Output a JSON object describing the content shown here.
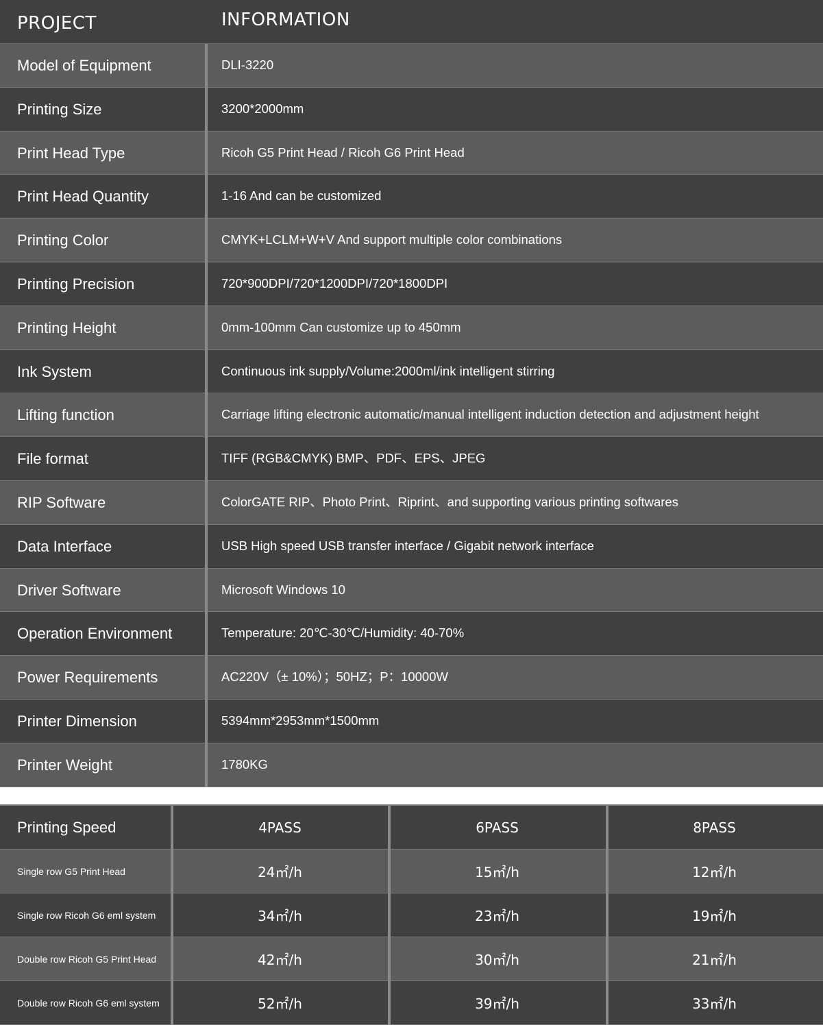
{
  "spec_table": {
    "header": {
      "project": "PROJECT",
      "information": "INFORMATION"
    },
    "rows": [
      {
        "label": "Model of Equipment",
        "value": "DLI-3220"
      },
      {
        "label": "Printing Size",
        "value": "3200*2000mm"
      },
      {
        "label": "Print Head Type",
        "value": "Ricoh G5 Print Head / Ricoh G6 Print Head"
      },
      {
        "label": "Print Head Quantity",
        "value": "1-16  And can be customized"
      },
      {
        "label": "Printing Color",
        "value": "CMYK+LCLM+W+V And support multiple color combinations"
      },
      {
        "label": "Printing Precision",
        "value": "720*900DPI/720*1200DPI/720*1800DPI"
      },
      {
        "label": "Printing Height",
        "value": "0mm-100mm Can customize up to 450mm"
      },
      {
        "label": "Ink System",
        "value": "Continuous ink supply/Volume:2000ml/ink intelligent stirring"
      },
      {
        "label": "Lifting function",
        "value": "Carriage lifting electronic automatic/manual intelligent induction detection and adjustment height"
      },
      {
        "label": "File format",
        "value": "TIFF (RGB&CMYK) BMP、PDF、EPS、JPEG"
      },
      {
        "label": "RIP Software",
        "value": "ColorGATE RIP、Photo Print、Riprint、and supporting various printing softwares"
      },
      {
        "label": "Data Interface",
        "value": "USB High speed USB transfer interface / Gigabit network interface"
      },
      {
        "label": "Driver Software",
        "value": "Microsoft Windows 10"
      },
      {
        "label": "Operation Environment",
        "value": "Temperature: 20℃-30℃/Humidity: 40-70%"
      },
      {
        "label": "Power Requirements",
        "value": "AC220V（± 10%）；50HZ；P：10000W"
      },
      {
        "label": "Printer Dimension",
        "value": "5394mm*2953mm*1500mm"
      },
      {
        "label": "Printer Weight",
        "value": "1780KG"
      }
    ]
  },
  "speed_table": {
    "header": [
      "Printing Speed",
      "4PASS",
      "6PASS",
      "8PASS"
    ],
    "rows": [
      {
        "label": "Single row G5 Print Head",
        "values": [
          "24㎡/h",
          "15㎡/h",
          "12㎡/h"
        ]
      },
      {
        "label": "Single row Ricoh G6 eml system",
        "values": [
          "34㎡/h",
          "23㎡/h",
          "19㎡/h"
        ]
      },
      {
        "label": "Double row Ricoh G5 Print Head",
        "values": [
          "42㎡/h",
          "30㎡/h",
          "21㎡/h"
        ]
      },
      {
        "label": "Double row Ricoh G6 eml system",
        "values": [
          "52㎡/h",
          "39㎡/h",
          "33㎡/h"
        ]
      }
    ]
  }
}
